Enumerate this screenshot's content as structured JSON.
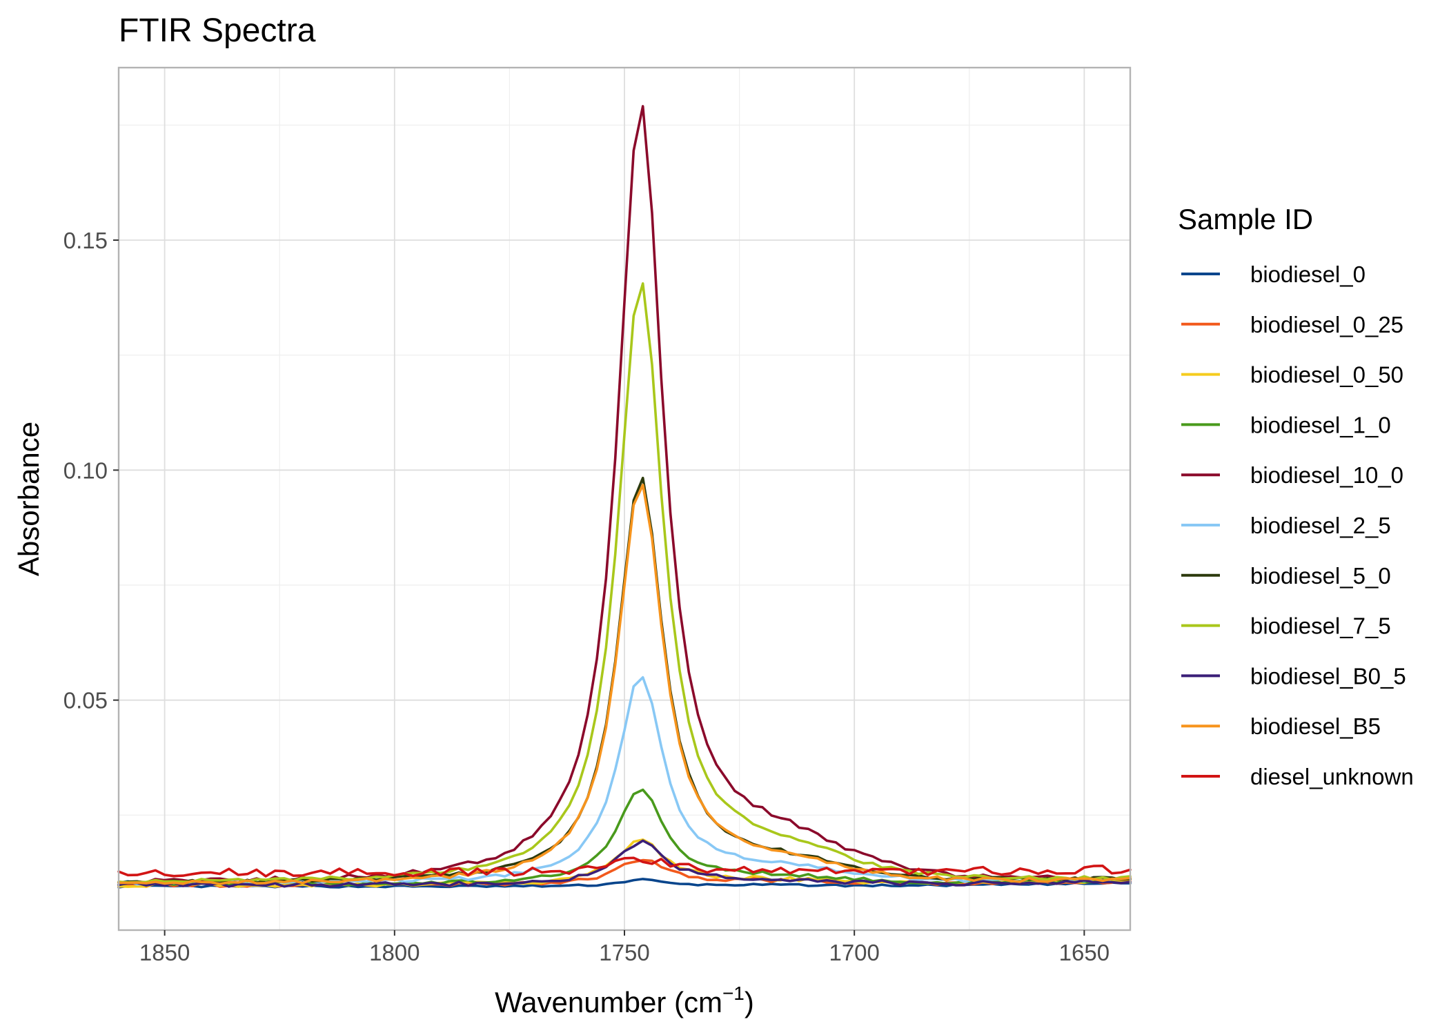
{
  "chart_data": {
    "type": "line",
    "title": "FTIR Spectra",
    "xlabel": "Wavenumber (cm",
    "xlabel_sup": "−1",
    "xlabel_close": ")",
    "ylabel": "Absorbance",
    "x_reversed": true,
    "xlim": [
      1860,
      1640
    ],
    "ylim": [
      0.0,
      0.1875
    ],
    "x_ticks": [
      1850,
      1800,
      1750,
      1700,
      1650
    ],
    "x_tick_labels": [
      "1850",
      "1800",
      "1750",
      "1700",
      "1650"
    ],
    "y_ticks": [
      0.05,
      0.1,
      0.15
    ],
    "y_tick_labels": [
      "0.05",
      "0.10",
      "0.15"
    ],
    "grid": true,
    "legend": {
      "title": "Sample ID",
      "position": "right"
    },
    "series": [
      {
        "name": "biodiesel_0",
        "color": "#08458c",
        "peak": 0.0015,
        "base": 0.0095,
        "width": 5.0,
        "tail": 0.0003,
        "noise": 0.0002
      },
      {
        "name": "biodiesel_0_25",
        "color": "#f2591c",
        "peak": 0.0055,
        "base": 0.0098,
        "width": 6.5,
        "tail": 0.0008,
        "noise": 0.0004
      },
      {
        "name": "biodiesel_0_50",
        "color": "#f5cc1e",
        "peak": 0.0095,
        "base": 0.0098,
        "width": 6.5,
        "tail": 0.001,
        "noise": 0.0004
      },
      {
        "name": "biodiesel_1_0",
        "color": "#499a1c",
        "peak": 0.0205,
        "base": 0.01,
        "width": 6.0,
        "tail": 0.0015,
        "noise": 0.0004
      },
      {
        "name": "biodiesel_10_0",
        "color": "#8b0a2b",
        "peak": 0.168,
        "base": 0.0102,
        "width": 6.0,
        "tail": 0.008,
        "noise": 0.0005
      },
      {
        "name": "biodiesel_2_5",
        "color": "#88c8f5",
        "peak": 0.0445,
        "base": 0.0102,
        "width": 6.0,
        "tail": 0.003,
        "noise": 0.0004
      },
      {
        "name": "biodiesel_5_0",
        "color": "#2c3a0d",
        "peak": 0.0875,
        "base": 0.0102,
        "width": 6.0,
        "tail": 0.004,
        "noise": 0.0004
      },
      {
        "name": "biodiesel_7_5",
        "color": "#a9c71b",
        "peak": 0.13,
        "base": 0.0102,
        "width": 6.0,
        "tail": 0.006,
        "noise": 0.0004
      },
      {
        "name": "biodiesel_B0_5",
        "color": "#3b1f78",
        "peak": 0.009,
        "base": 0.0098,
        "width": 6.5,
        "tail": 0.001,
        "noise": 0.0005
      },
      {
        "name": "biodiesel_B5",
        "color": "#f7941d",
        "peak": 0.0865,
        "base": 0.01,
        "width": 6.0,
        "tail": 0.004,
        "noise": 0.0004
      },
      {
        "name": "diesel_unknown",
        "color": "#d21414",
        "peak": 0.003,
        "base": 0.0125,
        "width": 7.0,
        "tail": 0.0005,
        "noise": 0.0009
      }
    ]
  }
}
